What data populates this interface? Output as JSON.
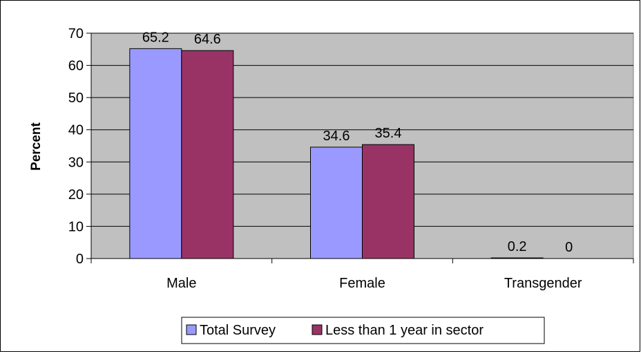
{
  "chart_data": {
    "type": "bar",
    "title": "",
    "xlabel": "",
    "ylabel": "Percent",
    "categories": [
      "Male",
      "Female",
      "Transgender"
    ],
    "series": [
      {
        "name": "Total Survey",
        "values": [
          65.2,
          34.6,
          0.2
        ],
        "labels": [
          "65.2",
          "34.6",
          "0.2"
        ],
        "color": "#9999FF"
      },
      {
        "name": "Less than 1 year in sector",
        "values": [
          64.6,
          35.4,
          0
        ],
        "labels": [
          "64.6",
          "35.4",
          "0"
        ],
        "color": "#993366"
      }
    ],
    "ylim": [
      0,
      70
    ],
    "yticks": [
      0,
      10,
      20,
      30,
      40,
      50,
      60,
      70
    ],
    "grid": true,
    "legend": "bottom",
    "plot_background": "#C0C0C0",
    "gridline_color": "#000000"
  }
}
